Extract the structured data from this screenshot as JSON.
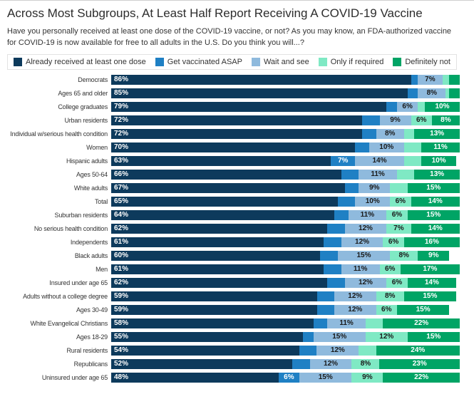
{
  "title": "Across Most Subgroups, At Least Half Report Receiving A COVID-19 Vaccine",
  "subtitle": "Have you personally received at least one dose of the COVID-19 vaccine, or not? As you may know, an FDA-authorized vaccine for COVID-19 is now available for free to all adults in the U.S. Do you think you will...?",
  "chart_data": {
    "type": "bar",
    "variant": "stacked-horizontal",
    "unit": "%",
    "axis_range": [
      0,
      100
    ],
    "grid": false,
    "legend_position": "top",
    "label_min_value": 6,
    "categories": [
      "Democrats",
      "Ages 65 and older",
      "College graduates",
      "Urban residents",
      "Individual w/serious health condition",
      "Women",
      "Hispanic adults",
      "Ages 50-64",
      "White adults",
      "Total",
      "Suburban residents",
      "No serious health condition",
      "Independents",
      "Black adults",
      "Men",
      "Insured under age 65",
      "Adults without a college degree",
      "Ages 30-49",
      "White Evangelical Christians",
      "Ages 18-29",
      "Rural residents",
      "Republicans",
      "Uninsured under age 65"
    ],
    "series": [
      {
        "key": "already-received",
        "name": "Already received at least one dose",
        "color": "#0d3a5c",
        "label_color": "#ffffff",
        "values": [
          86,
          85,
          79,
          72,
          72,
          70,
          63,
          66,
          67,
          65,
          64,
          62,
          61,
          60,
          61,
          62,
          59,
          59,
          58,
          55,
          54,
          52,
          48
        ]
      },
      {
        "key": "get-vaccinated-asap",
        "name": "Get vaccinated ASAP",
        "color": "#1f80c4",
        "label_color": "#ffffff",
        "values": [
          2,
          3,
          3,
          5,
          4,
          4,
          7,
          5,
          4,
          5,
          4,
          5,
          5,
          5,
          5,
          5,
          5,
          5,
          4,
          3,
          5,
          5,
          6
        ]
      },
      {
        "key": "wait-and-see",
        "name": "Wait and see",
        "color": "#8fbadd",
        "label_color": "#1a1a1a",
        "values": [
          7,
          8,
          6,
          9,
          8,
          10,
          14,
          11,
          9,
          10,
          11,
          12,
          12,
          15,
          11,
          12,
          12,
          12,
          11,
          15,
          12,
          12,
          15
        ]
      },
      {
        "key": "only-if-required",
        "name": "Only if required",
        "color": "#7fe9c4",
        "label_color": "#1a1a1a",
        "values": [
          2,
          1,
          2,
          6,
          3,
          5,
          5,
          5,
          5,
          6,
          6,
          7,
          6,
          8,
          6,
          6,
          8,
          6,
          5,
          12,
          5,
          8,
          9
        ]
      },
      {
        "key": "definitely-not",
        "name": "Definitely not",
        "color": "#00a465",
        "label_color": "#ffffff",
        "values": [
          3,
          3,
          10,
          8,
          13,
          11,
          10,
          13,
          15,
          14,
          15,
          14,
          16,
          9,
          17,
          14,
          15,
          15,
          22,
          15,
          24,
          23,
          22
        ]
      }
    ]
  }
}
